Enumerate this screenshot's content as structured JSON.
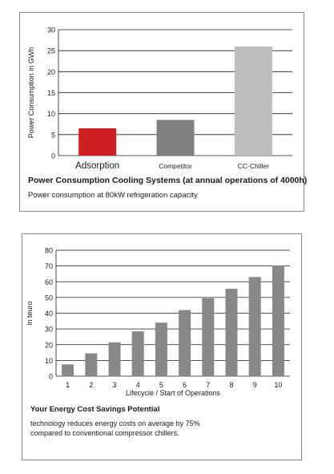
{
  "chart_data": [
    {
      "type": "bar",
      "categories": [
        "Adsorption",
        "Competitor",
        "CC-Chiller"
      ],
      "values": [
        6.5,
        8.5,
        26
      ],
      "colors": [
        "#d01f23",
        "#7f7f7f",
        "#bdbdbd"
      ],
      "ylabel": "Power Consumption in GWh",
      "ylim": [
        0,
        30
      ],
      "yticks": [
        0,
        5,
        10,
        15,
        20,
        25,
        30
      ],
      "grid": true,
      "caption_title": "Power Consumption Cooling Systems (at annual operations of 4000h)",
      "caption_text": "Power consumption at 80kW refrigeration capacity"
    },
    {
      "type": "bar",
      "categories": [
        "1",
        "2",
        "3",
        "4",
        "5",
        "6",
        "7",
        "8",
        "9",
        "10"
      ],
      "values": [
        7.5,
        14.5,
        21.5,
        28.5,
        34,
        42,
        49.5,
        55.5,
        63,
        70
      ],
      "colors": [
        "#888888"
      ],
      "xlabel": "Lifecycle / Start of Operations",
      "ylabel": "in teuro",
      "ylim": [
        0,
        80
      ],
      "yticks": [
        0,
        10,
        20,
        30,
        40,
        50,
        60,
        70,
        80
      ],
      "grid": true,
      "caption_title": "Your Energy Cost Savings Potential",
      "caption_lines": [
        "technology reduces energy costs on average by 75%",
        "compared to conventional compressor chillers."
      ]
    }
  ]
}
